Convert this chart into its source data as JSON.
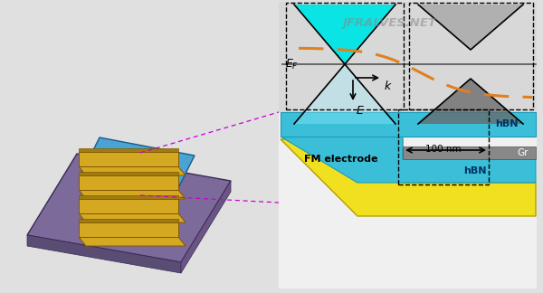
{
  "bg_color": "#e0e0e0",
  "left_panel": {
    "board_color": "#7b6a9a",
    "board_dark": "#5a4d74",
    "board_side": "#6a5585",
    "channel_color": "#4ba3d4",
    "channel_dark": "#2a7aab",
    "electrode_color": "#d4a820",
    "electrode_dark": "#a07c10"
  },
  "right_panel": {
    "yellow_color": "#f0e020",
    "yellow_edge": "#b0a000",
    "hbn_color": "#3bbfd8",
    "hbn_edge": "#1a9ab8",
    "gr_color": "#888888",
    "gr_edge": "#505050",
    "fm_label": "FM electrode",
    "hbn_label": "hBN",
    "gr_label": "Gr",
    "nm_label": "100 nm",
    "bg_color": "#f0f0f0"
  },
  "dirac_panel": {
    "cone_cyan": "#00e5e5",
    "cone_cyan_upper": "#99eeff",
    "cone_gray_lower": "#aaaaaa",
    "cone_gray_upper": "#666666",
    "fermi_label": "E_F",
    "e_label": "E",
    "k_label": "k",
    "dashed_color": "#e08020",
    "bg_color": "#d8d8d8",
    "line_color": "#555555"
  },
  "magenta_line_color": "#cc00cc",
  "watermark": "JFRALVES.NET"
}
